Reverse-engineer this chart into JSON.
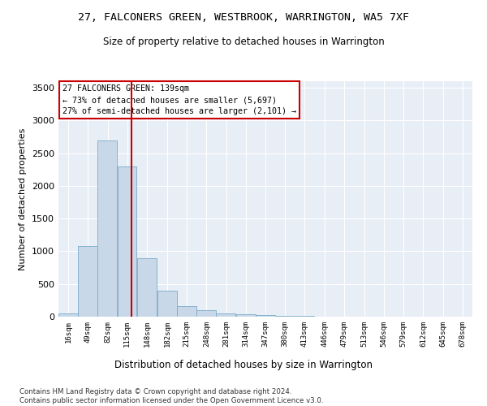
{
  "title": "27, FALCONERS GREEN, WESTBROOK, WARRINGTON, WA5 7XF",
  "subtitle": "Size of property relative to detached houses in Warrington",
  "xlabel": "Distribution of detached houses by size in Warrington",
  "ylabel": "Number of detached properties",
  "bar_color": "#c8d8e8",
  "bar_edge_color": "#7aaac8",
  "background_color": "#e8eef6",
  "annotation_text": "27 FALCONERS GREEN: 139sqm\n← 73% of detached houses are smaller (5,697)\n27% of semi-detached houses are larger (2,101) →",
  "vline_color": "#cc0000",
  "categories": [
    "16sqm",
    "49sqm",
    "82sqm",
    "115sqm",
    "148sqm",
    "182sqm",
    "215sqm",
    "248sqm",
    "281sqm",
    "314sqm",
    "347sqm",
    "380sqm",
    "413sqm",
    "446sqm",
    "479sqm",
    "513sqm",
    "546sqm",
    "579sqm",
    "612sqm",
    "645sqm",
    "678sqm"
  ],
  "bin_edges": [
    16,
    49,
    82,
    115,
    148,
    182,
    215,
    248,
    281,
    314,
    347,
    380,
    413,
    446,
    479,
    513,
    546,
    579,
    612,
    645,
    678
  ],
  "bin_width": 33,
  "values": [
    50,
    1080,
    2700,
    2300,
    900,
    400,
    160,
    100,
    55,
    35,
    20,
    10,
    8,
    5,
    3,
    2,
    1,
    1,
    0,
    0,
    0
  ],
  "vline_x": 139,
  "ylim": [
    0,
    3600
  ],
  "yticks": [
    0,
    500,
    1000,
    1500,
    2000,
    2500,
    3000,
    3500
  ],
  "footnote": "Contains HM Land Registry data © Crown copyright and database right 2024.\nContains public sector information licensed under the Open Government Licence v3.0.",
  "fig_width": 6.0,
  "fig_height": 5.0,
  "dpi": 100
}
